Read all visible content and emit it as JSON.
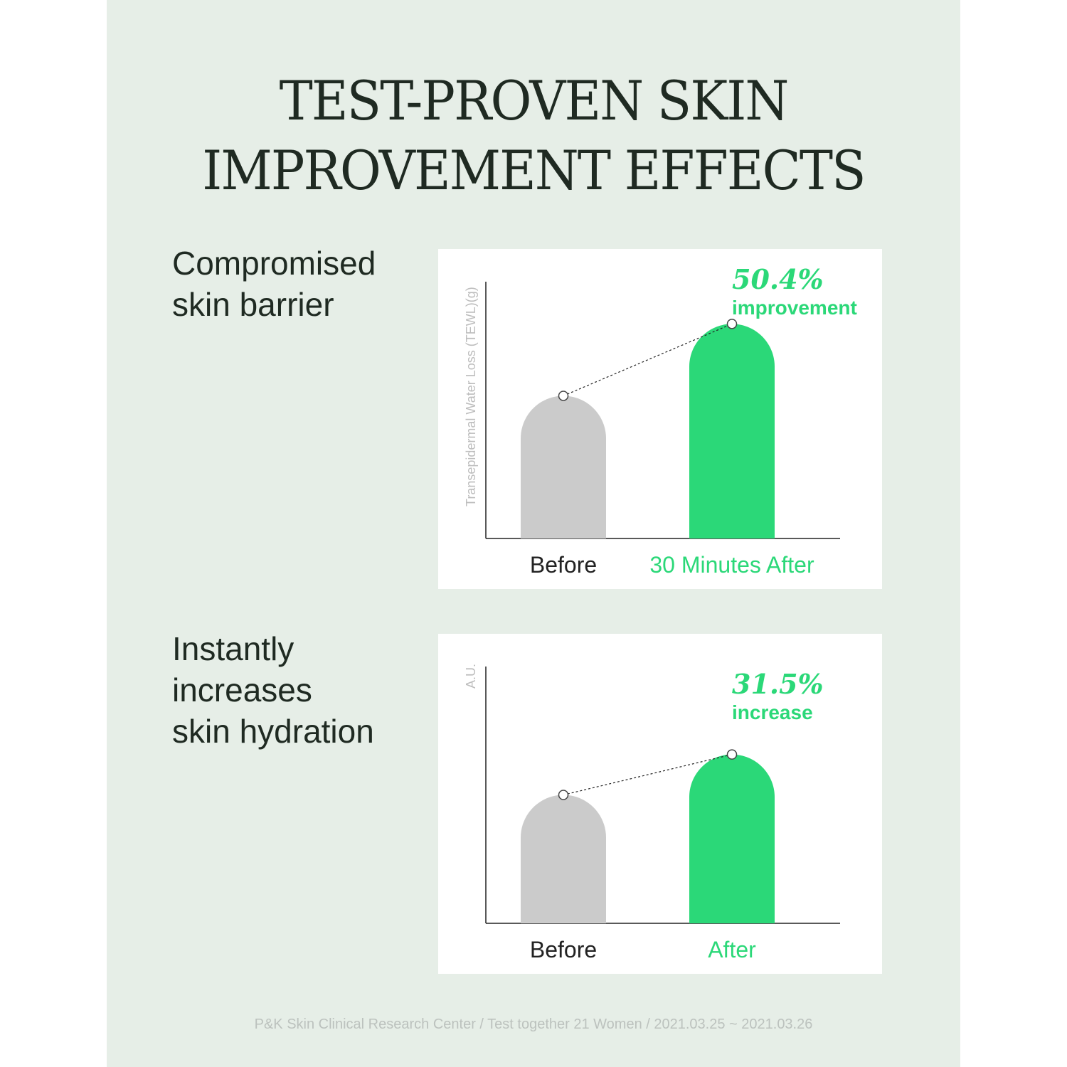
{
  "headline": {
    "line1": "TEST-PROVEN SKIN",
    "line2": "IMPROVEMENT EFFECTS"
  },
  "colors": {
    "background": "#e6eee7",
    "before_bar": "#cbcbcb",
    "after_bar": "#2bd878",
    "accent_text": "#2bd878",
    "axis": "#222222"
  },
  "charts": [
    {
      "description": "Compromised\nskin barrier",
      "annotation_value": "50.4%",
      "annotation_label": "improvement"
    },
    {
      "description": "Instantly\nincreases\nskin hydration",
      "annotation_value": "31.5%",
      "annotation_label": "increase"
    }
  ],
  "chart_data": [
    {
      "type": "bar",
      "categories": [
        "Before",
        "30 Minutes After"
      ],
      "values": [
        1.0,
        1.504
      ],
      "ylabel": "Transepidermal Water Loss (TEWL)(g)",
      "ylim": [
        0,
        1.8
      ],
      "grid": false,
      "legend": "none"
    },
    {
      "type": "bar",
      "categories": [
        "Before",
        "After"
      ],
      "values": [
        1.0,
        1.315
      ],
      "ylabel": "A.U.",
      "ylim": [
        0,
        2.0
      ],
      "grid": false,
      "legend": "none"
    }
  ],
  "footnote": "P&K Skin Clinical Research Center / Test together 21 Women / 2021.03.25 ~ 2021.03.26"
}
